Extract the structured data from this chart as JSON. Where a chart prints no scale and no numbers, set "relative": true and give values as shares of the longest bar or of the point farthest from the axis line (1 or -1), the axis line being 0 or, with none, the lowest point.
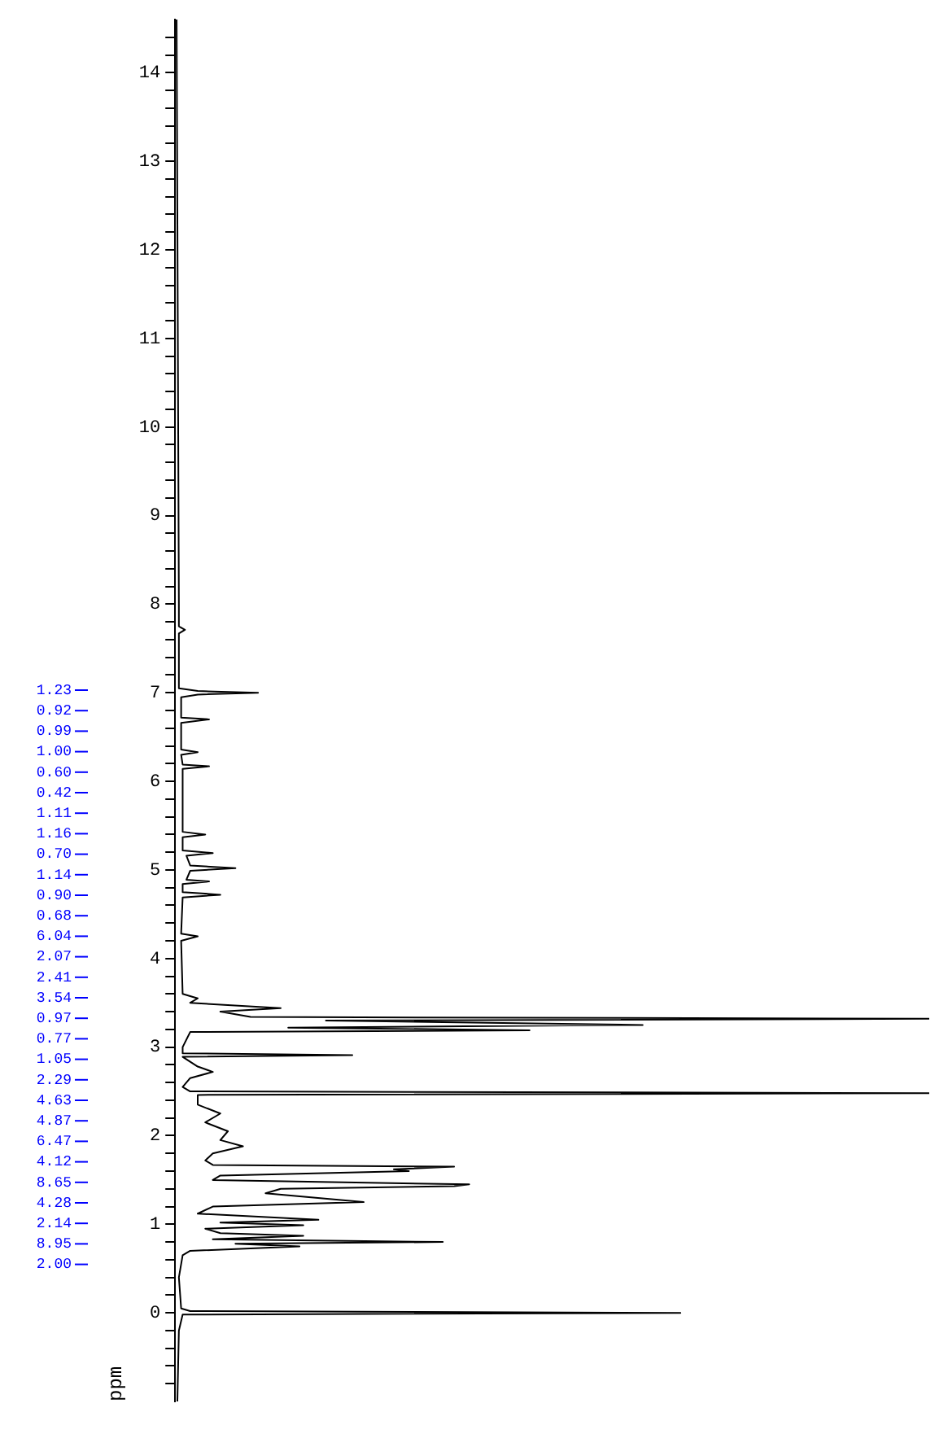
{
  "chart_data": {
    "type": "line",
    "orientation": "horizontal",
    "relative": true,
    "ylabel": "ppm",
    "legend": false,
    "grid": false,
    "marker": "none",
    "ylim": [
      -1,
      14.6
    ],
    "yticks": [
      {
        "value": -0.8,
        "label": null
      },
      {
        "value": -0.6,
        "label": null
      },
      {
        "value": -0.4,
        "label": null
      },
      {
        "value": -0.2,
        "label": null
      },
      0,
      {
        "value": 0.2,
        "label": null
      },
      {
        "value": 0.4,
        "label": null
      },
      {
        "value": 0.6,
        "label": null
      },
      {
        "value": 0.8,
        "label": null
      },
      1,
      {
        "value": 1.2,
        "label": null
      },
      {
        "value": 1.4,
        "label": null
      },
      {
        "value": 1.6,
        "label": null
      },
      {
        "value": 1.8,
        "label": null
      },
      2,
      {
        "value": 2.2,
        "label": null
      },
      {
        "value": 2.4,
        "label": null
      },
      {
        "value": 2.6,
        "label": null
      },
      {
        "value": 2.8,
        "label": null
      },
      3,
      {
        "value": 3.2,
        "label": null
      },
      {
        "value": 3.4,
        "label": null
      },
      {
        "value": 3.6,
        "label": null
      },
      {
        "value": 3.8,
        "label": null
      },
      4,
      {
        "value": 4.2,
        "label": null
      },
      {
        "value": 4.4,
        "label": null
      },
      {
        "value": 4.6,
        "label": null
      },
      {
        "value": 4.8,
        "label": null
      },
      5,
      {
        "value": 5.2,
        "label": null
      },
      {
        "value": 5.4,
        "label": null
      },
      {
        "value": 5.6,
        "label": null
      },
      {
        "value": 5.8,
        "label": null
      },
      6,
      {
        "value": 6.2,
        "label": null
      },
      {
        "value": 6.4,
        "label": null
      },
      {
        "value": 6.6,
        "label": null
      },
      {
        "value": 6.8,
        "label": null
      },
      7,
      {
        "value": 7.2,
        "label": null
      },
      {
        "value": 7.4,
        "label": null
      },
      {
        "value": 7.6,
        "label": null
      },
      {
        "value": 7.8,
        "label": null
      },
      8,
      {
        "value": 8.2,
        "label": null
      },
      {
        "value": 8.4,
        "label": null
      },
      {
        "value": 8.6,
        "label": null
      },
      {
        "value": 8.8,
        "label": null
      },
      9,
      {
        "value": 9.2,
        "label": null
      },
      {
        "value": 9.4,
        "label": null
      },
      {
        "value": 9.6,
        "label": null
      },
      {
        "value": 9.8,
        "label": null
      },
      10,
      {
        "value": 10.2,
        "label": null
      },
      {
        "value": 10.4,
        "label": null
      },
      {
        "value": 10.6,
        "label": null
      },
      {
        "value": 10.8,
        "label": null
      },
      11,
      {
        "value": 11.2,
        "label": null
      },
      {
        "value": 11.4,
        "label": null
      },
      {
        "value": 11.6,
        "label": null
      },
      {
        "value": 11.8,
        "label": null
      },
      12,
      {
        "value": 12.2,
        "label": null
      },
      {
        "value": 12.4,
        "label": null
      },
      {
        "value": 12.6,
        "label": null
      },
      {
        "value": 12.8,
        "label": null
      },
      13,
      {
        "value": 13.2,
        "label": null
      },
      {
        "value": 13.4,
        "label": null
      },
      {
        "value": 13.6,
        "label": null
      },
      {
        "value": 13.8,
        "label": null
      },
      14,
      {
        "value": 14.2,
        "label": null
      },
      {
        "value": 14.4,
        "label": null
      }
    ],
    "series": [
      {
        "color": "#000000",
        "x": [
          14.6,
          8.0,
          7.75,
          7.71,
          7.67,
          7.05,
          7.02,
          7.0,
          6.98,
          6.95,
          6.72,
          6.7,
          6.66,
          6.36,
          6.33,
          6.3,
          6.19,
          6.17,
          6.14,
          5.43,
          5.4,
          5.37,
          5.22,
          5.19,
          5.16,
          5.05,
          5.02,
          4.99,
          4.89,
          4.87,
          4.84,
          4.75,
          4.72,
          4.69,
          4.28,
          4.25,
          4.2,
          3.6,
          3.55,
          3.5,
          3.44,
          3.4,
          3.34,
          3.32,
          3.3,
          3.25,
          3.22,
          3.19,
          3.17,
          3.0,
          2.93,
          2.91,
          2.89,
          2.78,
          2.72,
          2.65,
          2.55,
          2.5,
          2.48,
          2.46,
          2.35,
          2.25,
          2.15,
          2.05,
          1.95,
          1.88,
          1.8,
          1.72,
          1.67,
          1.65,
          1.62,
          1.6,
          1.55,
          1.5,
          1.45,
          1.43,
          1.4,
          1.35,
          1.25,
          1.2,
          1.12,
          1.05,
          1.02,
          0.99,
          0.95,
          0.9,
          0.87,
          0.83,
          0.8,
          0.78,
          0.75,
          0.7,
          0.65,
          0.4,
          0.05,
          0.02,
          0.0,
          -0.02,
          -0.2,
          -1.0
        ],
        "values": [
          0.002,
          0.005,
          0.005,
          0.013,
          0.005,
          0.005,
          0.03,
          0.11,
          0.03,
          0.008,
          0.008,
          0.045,
          0.008,
          0.008,
          0.03,
          0.008,
          0.01,
          0.045,
          0.01,
          0.01,
          0.04,
          0.01,
          0.01,
          0.05,
          0.015,
          0.02,
          0.08,
          0.02,
          0.015,
          0.045,
          0.01,
          0.01,
          0.06,
          0.01,
          0.008,
          0.03,
          0.008,
          0.01,
          0.03,
          0.02,
          0.14,
          0.06,
          0.1,
          1,
          0.2,
          0.62,
          0.15,
          0.47,
          0.02,
          0.01,
          0.01,
          0.235,
          0.01,
          0.03,
          0.05,
          0.02,
          0.01,
          0.02,
          1,
          0.03,
          0.03,
          0.06,
          0.04,
          0.07,
          0.06,
          0.09,
          0.05,
          0.04,
          0.05,
          0.37,
          0.29,
          0.31,
          0.06,
          0.05,
          0.39,
          0.37,
          0.14,
          0.12,
          0.25,
          0.05,
          0.03,
          0.19,
          0.06,
          0.17,
          0.04,
          0.06,
          0.17,
          0.05,
          0.355,
          0.08,
          0.165,
          0.02,
          0.01,
          0.005,
          0.008,
          0.02,
          0.67,
          0.01,
          0.005,
          0.003
        ]
      }
    ],
    "annotations": [
      "1.23",
      "0.92",
      "0.99",
      "1.00",
      "0.60",
      "0.42",
      "1.11",
      "1.16",
      "0.70",
      "1.14",
      "0.90",
      "0.68",
      "6.04",
      "2.07",
      "2.41",
      "3.54",
      "0.97",
      "0.77",
      "1.05",
      "2.29",
      "4.63",
      "4.87",
      "6.47",
      "4.12",
      "8.65",
      "4.28",
      "2.14",
      "8.95",
      "2.00"
    ]
  }
}
